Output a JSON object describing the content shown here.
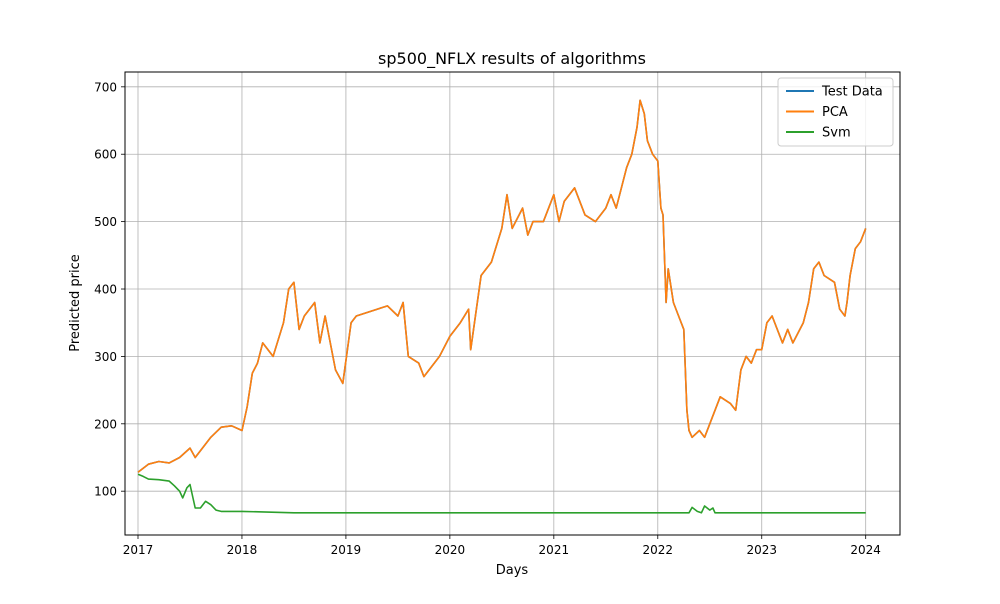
{
  "chart_data": {
    "type": "line",
    "title": "sp500_NFLX results of algorithms",
    "xlabel": "Days",
    "ylabel": "Predicted price",
    "xlim": [
      2016.875,
      2024.33
    ],
    "ylim": [
      35,
      722
    ],
    "xticks": [
      2017,
      2018,
      2019,
      2020,
      2021,
      2022,
      2023,
      2024
    ],
    "xtick_labels": [
      "2017",
      "2018",
      "2019",
      "2020",
      "2021",
      "2022",
      "2023",
      "2024"
    ],
    "yticks": [
      100,
      200,
      300,
      400,
      500,
      600,
      700
    ],
    "ytick_labels": [
      "100",
      "200",
      "300",
      "400",
      "500",
      "600",
      "700"
    ],
    "grid": true,
    "legend_position": "top-right",
    "series": [
      {
        "name": "Test Data",
        "color": "#1f77b4",
        "x": [
          2017.0,
          2017.1,
          2017.2,
          2017.3,
          2017.4,
          2017.5,
          2017.55,
          2017.6,
          2017.7,
          2017.8,
          2017.9,
          2018.0,
          2018.05,
          2018.1,
          2018.15,
          2018.2,
          2018.3,
          2018.4,
          2018.45,
          2018.5,
          2018.55,
          2018.6,
          2018.7,
          2018.75,
          2018.8,
          2018.9,
          2018.97,
          2019.05,
          2019.1,
          2019.2,
          2019.3,
          2019.4,
          2019.5,
          2019.55,
          2019.6,
          2019.7,
          2019.75,
          2019.8,
          2019.9,
          2020.0,
          2020.1,
          2020.18,
          2020.2,
          2020.3,
          2020.4,
          2020.5,
          2020.55,
          2020.6,
          2020.7,
          2020.75,
          2020.8,
          2020.9,
          2021.0,
          2021.05,
          2021.1,
          2021.2,
          2021.3,
          2021.4,
          2021.5,
          2021.55,
          2021.6,
          2021.7,
          2021.75,
          2021.8,
          2021.83,
          2021.87,
          2021.9,
          2021.95,
          2022.0,
          2022.03,
          2022.05,
          2022.08,
          2022.1,
          2022.15,
          2022.2,
          2022.25,
          2022.28,
          2022.3,
          2022.33,
          2022.4,
          2022.45,
          2022.5,
          2022.6,
          2022.7,
          2022.75,
          2022.8,
          2022.85,
          2022.9,
          2022.95,
          2023.0,
          2023.05,
          2023.1,
          2023.2,
          2023.25,
          2023.3,
          2023.4,
          2023.45,
          2023.5,
          2023.55,
          2023.6,
          2023.7,
          2023.75,
          2023.8,
          2023.82,
          2023.85,
          2023.9,
          2023.95,
          2024.0
        ],
        "y": [
          128,
          140,
          144,
          142,
          150,
          164,
          150,
          160,
          180,
          195,
          197,
          190,
          225,
          275,
          290,
          320,
          300,
          350,
          400,
          410,
          340,
          360,
          380,
          320,
          360,
          280,
          260,
          350,
          360,
          365,
          370,
          375,
          360,
          380,
          300,
          290,
          270,
          280,
          300,
          330,
          350,
          370,
          310,
          420,
          440,
          490,
          540,
          490,
          520,
          480,
          500,
          500,
          540,
          500,
          530,
          550,
          510,
          500,
          520,
          540,
          520,
          580,
          600,
          640,
          680,
          660,
          620,
          600,
          590,
          520,
          510,
          380,
          430,
          380,
          360,
          340,
          220,
          190,
          180,
          190,
          180,
          200,
          240,
          230,
          220,
          280,
          300,
          290,
          310,
          310,
          350,
          360,
          320,
          340,
          320,
          350,
          380,
          430,
          440,
          420,
          410,
          370,
          360,
          380,
          420,
          460,
          470,
          490
        ]
      },
      {
        "name": "PCA",
        "color": "#ff7f0e",
        "x": [
          2017.0,
          2017.1,
          2017.2,
          2017.3,
          2017.4,
          2017.5,
          2017.55,
          2017.6,
          2017.7,
          2017.8,
          2017.9,
          2018.0,
          2018.05,
          2018.1,
          2018.15,
          2018.2,
          2018.3,
          2018.4,
          2018.45,
          2018.5,
          2018.55,
          2018.6,
          2018.7,
          2018.75,
          2018.8,
          2018.9,
          2018.97,
          2019.05,
          2019.1,
          2019.2,
          2019.3,
          2019.4,
          2019.5,
          2019.55,
          2019.6,
          2019.7,
          2019.75,
          2019.8,
          2019.9,
          2020.0,
          2020.1,
          2020.18,
          2020.2,
          2020.3,
          2020.4,
          2020.5,
          2020.55,
          2020.6,
          2020.7,
          2020.75,
          2020.8,
          2020.9,
          2021.0,
          2021.05,
          2021.1,
          2021.2,
          2021.3,
          2021.4,
          2021.5,
          2021.55,
          2021.6,
          2021.7,
          2021.75,
          2021.8,
          2021.83,
          2021.87,
          2021.9,
          2021.95,
          2022.0,
          2022.03,
          2022.05,
          2022.08,
          2022.1,
          2022.15,
          2022.2,
          2022.25,
          2022.28,
          2022.3,
          2022.33,
          2022.4,
          2022.45,
          2022.5,
          2022.6,
          2022.7,
          2022.75,
          2022.8,
          2022.85,
          2022.9,
          2022.95,
          2023.0,
          2023.05,
          2023.1,
          2023.2,
          2023.25,
          2023.3,
          2023.4,
          2023.45,
          2023.5,
          2023.55,
          2023.6,
          2023.7,
          2023.75,
          2023.8,
          2023.82,
          2023.85,
          2023.9,
          2023.95,
          2024.0
        ],
        "y": [
          128,
          140,
          144,
          142,
          150,
          164,
          150,
          160,
          180,
          195,
          197,
          190,
          225,
          275,
          290,
          320,
          300,
          350,
          400,
          410,
          340,
          360,
          380,
          320,
          360,
          280,
          260,
          350,
          360,
          365,
          370,
          375,
          360,
          380,
          300,
          290,
          270,
          280,
          300,
          330,
          350,
          370,
          310,
          420,
          440,
          490,
          540,
          490,
          520,
          480,
          500,
          500,
          540,
          500,
          530,
          550,
          510,
          500,
          520,
          540,
          520,
          580,
          600,
          640,
          680,
          660,
          620,
          600,
          590,
          520,
          510,
          380,
          430,
          380,
          360,
          340,
          220,
          190,
          180,
          190,
          180,
          200,
          240,
          230,
          220,
          280,
          300,
          290,
          310,
          310,
          350,
          360,
          320,
          340,
          320,
          350,
          380,
          430,
          440,
          420,
          410,
          370,
          360,
          380,
          420,
          460,
          470,
          490
        ]
      },
      {
        "name": "Svm",
        "color": "#2ca02c",
        "x": [
          2017.0,
          2017.05,
          2017.1,
          2017.2,
          2017.3,
          2017.35,
          2017.4,
          2017.43,
          2017.47,
          2017.5,
          2017.55,
          2017.6,
          2017.65,
          2017.7,
          2017.75,
          2017.8,
          2017.9,
          2018.0,
          2018.5,
          2019.0,
          2020.0,
          2021.0,
          2022.0,
          2022.3,
          2022.33,
          2022.38,
          2022.42,
          2022.45,
          2022.5,
          2022.53,
          2022.55,
          2023.0,
          2024.0
        ],
        "y": [
          125,
          122,
          118,
          117,
          115,
          108,
          100,
          90,
          105,
          110,
          75,
          75,
          85,
          80,
          72,
          70,
          70,
          70,
          68,
          68,
          68,
          68,
          68,
          68,
          76,
          70,
          68,
          78,
          72,
          75,
          68,
          68,
          68
        ]
      }
    ]
  }
}
